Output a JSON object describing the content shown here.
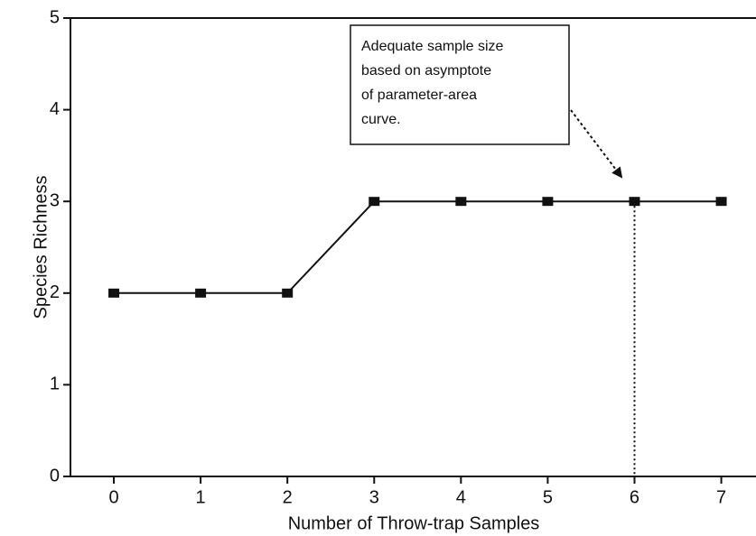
{
  "chart_data": {
    "type": "line",
    "xlabel": "Number of Throw-trap Samples",
    "ylabel": "Species Richness",
    "x": [
      0,
      1,
      2,
      3,
      4,
      5,
      6,
      7
    ],
    "values": [
      2,
      2,
      2,
      3,
      3,
      3,
      3,
      3
    ],
    "color": "#111111",
    "xlim": [
      -0.5,
      7.4
    ],
    "ylim": [
      0,
      5
    ],
    "xticks": [
      0,
      1,
      2,
      3,
      4,
      5,
      6,
      7
    ],
    "yticks": [
      0,
      1,
      2,
      3,
      4,
      5
    ],
    "annotation": [
      "Adequate sample size",
      "based on asymptote",
      "of parameter-area",
      "curve."
    ]
  }
}
